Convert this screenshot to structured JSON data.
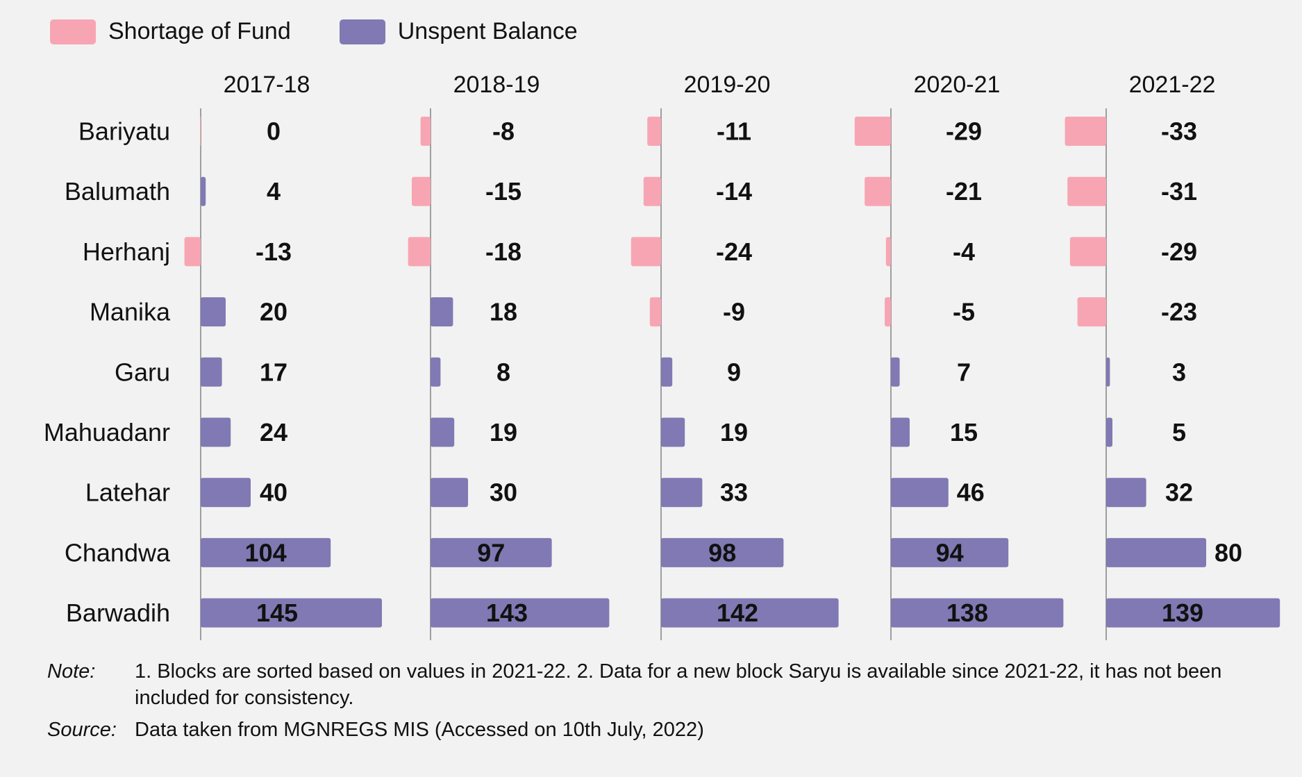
{
  "legend": {
    "shortage_label": "Shortage of Fund",
    "unspent_label": "Unspent Balance"
  },
  "colors": {
    "shortage": "#f8a5b3",
    "unspent": "#8079b3",
    "axis": "#666666"
  },
  "chart_data": {
    "type": "bar",
    "orientation": "horizontal",
    "panels": [
      "2017-18",
      "2018-19",
      "2019-20",
      "2020-21",
      "2021-22"
    ],
    "categories": [
      "Bariyatu",
      "Balumath",
      "Herhanj",
      "Manika",
      "Garu",
      "Mahuadanr",
      "Latehar",
      "Chandwa",
      "Barwadih"
    ],
    "values": {
      "2017-18": [
        0,
        4,
        -13,
        20,
        17,
        24,
        40,
        104,
        145
      ],
      "2018-19": [
        -8,
        -15,
        -18,
        18,
        8,
        19,
        30,
        97,
        143
      ],
      "2019-20": [
        -11,
        -14,
        -24,
        -9,
        9,
        19,
        33,
        98,
        142
      ],
      "2020-21": [
        -29,
        -21,
        -4,
        -5,
        7,
        15,
        46,
        94,
        138
      ],
      "2021-22": [
        -33,
        -31,
        -29,
        -23,
        3,
        5,
        32,
        80,
        139
      ]
    },
    "series": [
      {
        "name": "Shortage of Fund",
        "sign": "negative"
      },
      {
        "name": "Unspent Balance",
        "sign": "positive"
      }
    ],
    "legend_position": "top-left",
    "grid": false
  },
  "notes": {
    "note_key": "Note:",
    "note_text": "1. Blocks are sorted based on values in 2021-22. 2. Data for a new block Saryu is available since 2021-22, it has not been included for consistency.",
    "source_key": "Source:",
    "source_text": "Data taken from MGNREGS MIS (Accessed on 10th July, 2022)"
  }
}
